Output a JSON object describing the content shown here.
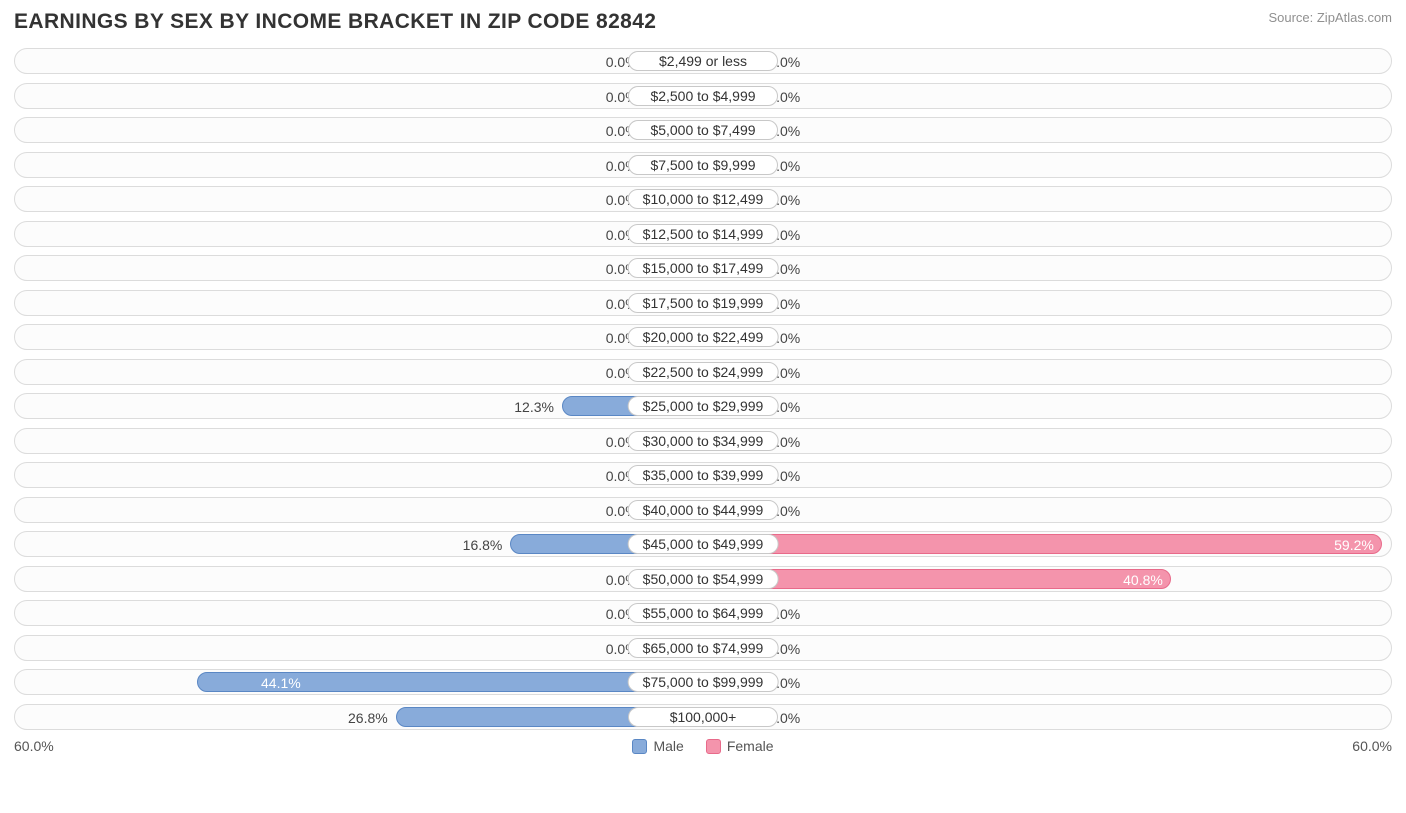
{
  "title": "EARNINGS BY SEX BY INCOME BRACKET IN ZIP CODE 82842",
  "source": "Source: ZipAtlas.com",
  "axis_max_percent": 60.0,
  "axis_label": "60.0%",
  "min_bar_percent": 5.0,
  "colors": {
    "male_fill": "#88abda",
    "male_border": "#5a87c4",
    "female_fill": "#f494ac",
    "female_border": "#e86a8a",
    "track_border": "#dcdcdc",
    "track_bg": "#fcfcfc",
    "text": "#444444",
    "title_text": "#333333",
    "source_text": "#909090",
    "inside_text": "#ffffff"
  },
  "legend": {
    "male": "Male",
    "female": "Female"
  },
  "rows": [
    {
      "label": "$2,499 or less",
      "male": 0.0,
      "female": 0.0
    },
    {
      "label": "$2,500 to $4,999",
      "male": 0.0,
      "female": 0.0
    },
    {
      "label": "$5,000 to $7,499",
      "male": 0.0,
      "female": 0.0
    },
    {
      "label": "$7,500 to $9,999",
      "male": 0.0,
      "female": 0.0
    },
    {
      "label": "$10,000 to $12,499",
      "male": 0.0,
      "female": 0.0
    },
    {
      "label": "$12,500 to $14,999",
      "male": 0.0,
      "female": 0.0
    },
    {
      "label": "$15,000 to $17,499",
      "male": 0.0,
      "female": 0.0
    },
    {
      "label": "$17,500 to $19,999",
      "male": 0.0,
      "female": 0.0
    },
    {
      "label": "$20,000 to $22,499",
      "male": 0.0,
      "female": 0.0
    },
    {
      "label": "$22,500 to $24,999",
      "male": 0.0,
      "female": 0.0
    },
    {
      "label": "$25,000 to $29,999",
      "male": 12.3,
      "female": 0.0
    },
    {
      "label": "$30,000 to $34,999",
      "male": 0.0,
      "female": 0.0
    },
    {
      "label": "$35,000 to $39,999",
      "male": 0.0,
      "female": 0.0
    },
    {
      "label": "$40,000 to $44,999",
      "male": 0.0,
      "female": 0.0
    },
    {
      "label": "$45,000 to $49,999",
      "male": 16.8,
      "female": 59.2
    },
    {
      "label": "$50,000 to $54,999",
      "male": 0.0,
      "female": 40.8
    },
    {
      "label": "$55,000 to $64,999",
      "male": 0.0,
      "female": 0.0
    },
    {
      "label": "$65,000 to $74,999",
      "male": 0.0,
      "female": 0.0
    },
    {
      "label": "$75,000 to $99,999",
      "male": 44.1,
      "female": 0.0
    },
    {
      "label": "$100,000+",
      "male": 26.8,
      "female": 0.0
    }
  ],
  "label_inside_threshold": 35.0
}
